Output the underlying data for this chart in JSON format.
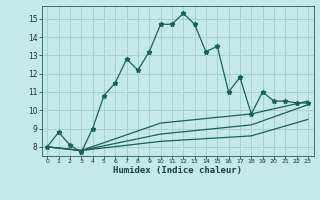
{
  "title": "",
  "xlabel": "Humidex (Indice chaleur)",
  "bg_color": "#c5e8e8",
  "grid_color": "#aacfcf",
  "line_color": "#1a6060",
  "xlim": [
    -0.5,
    23.5
  ],
  "ylim": [
    7.5,
    15.7
  ],
  "xticks": [
    0,
    1,
    2,
    3,
    4,
    5,
    6,
    7,
    8,
    9,
    10,
    11,
    12,
    13,
    14,
    15,
    16,
    17,
    18,
    19,
    20,
    21,
    22,
    23
  ],
  "yticks": [
    8,
    9,
    10,
    11,
    12,
    13,
    14,
    15
  ],
  "line1_x": [
    0,
    1,
    2,
    3,
    4,
    5,
    6,
    7,
    8,
    9,
    10,
    11,
    12,
    13,
    14,
    15,
    16,
    17,
    18,
    19,
    20,
    21,
    22,
    23
  ],
  "line1_y": [
    8.0,
    8.8,
    8.1,
    7.7,
    9.0,
    10.8,
    11.5,
    12.8,
    12.2,
    13.2,
    14.7,
    14.7,
    15.3,
    14.7,
    13.2,
    13.5,
    11.0,
    11.8,
    9.8,
    11.0,
    10.5,
    10.5,
    10.4,
    10.4
  ],
  "line2_x": [
    0,
    3,
    10,
    18,
    23
  ],
  "line2_y": [
    8.0,
    7.8,
    9.3,
    9.8,
    10.5
  ],
  "line3_x": [
    0,
    3,
    10,
    18,
    23
  ],
  "line3_y": [
    8.0,
    7.8,
    8.7,
    9.2,
    10.3
  ],
  "line4_x": [
    0,
    3,
    10,
    18,
    23
  ],
  "line4_y": [
    8.0,
    7.8,
    8.3,
    8.6,
    9.5
  ]
}
